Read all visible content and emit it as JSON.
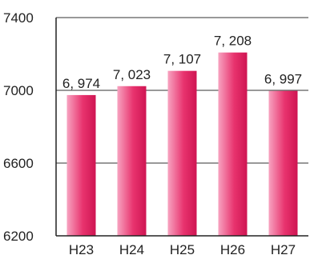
{
  "chart_data": {
    "type": "bar",
    "title": "",
    "xlabel": "",
    "ylabel": "",
    "categories": [
      "H23",
      "H24",
      "H25",
      "H26",
      "H27"
    ],
    "values": [
      6974,
      7023,
      7107,
      7208,
      6997
    ],
    "data_labels": [
      "6, 974",
      "7, 023",
      "7, 107",
      "7, 208",
      "6, 997"
    ],
    "ylim": [
      6200,
      7400
    ],
    "yticks": [
      6200,
      6600,
      7000,
      7400
    ],
    "ytick_labels": [
      "6200",
      "6600",
      "7000",
      "7400"
    ],
    "grid": true,
    "legend": "none",
    "colors": {
      "bar_light": "#f7a3c0",
      "bar_main": "#e8336e",
      "bar_dark": "#cf1552",
      "axis": "#222222",
      "grid": "#333333"
    }
  }
}
